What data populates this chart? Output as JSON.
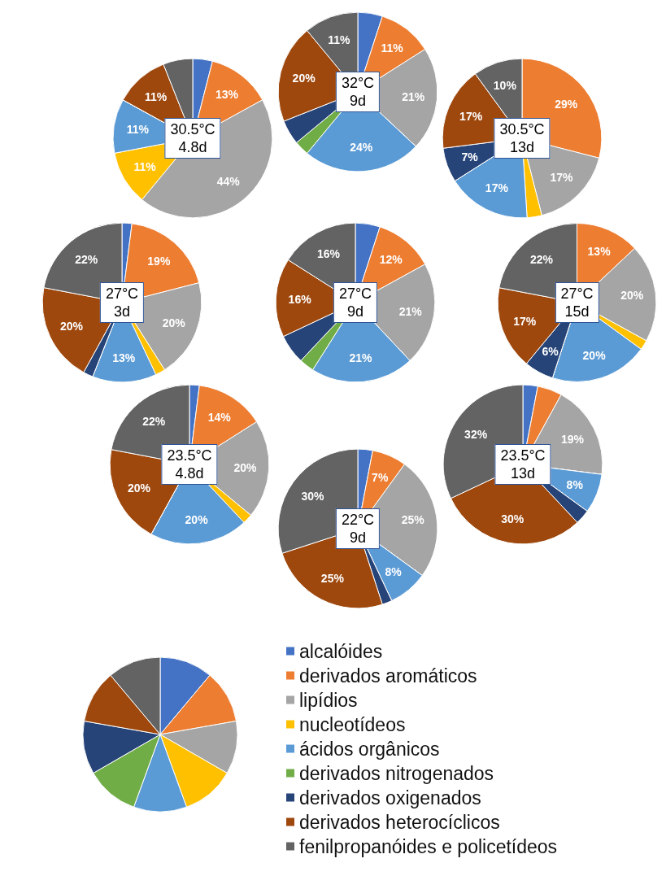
{
  "chart_data": [
    {
      "type": "pie",
      "title": "30.5°C",
      "subtitle": "4.8d",
      "categories": [
        null,
        null,
        null,
        null,
        null,
        null,
        null,
        null,
        null
      ],
      "values": [
        4,
        13,
        44,
        11,
        11,
        0,
        0,
        11,
        6
      ],
      "value_labels": [
        null,
        "13%",
        "44%",
        "11%",
        "11%",
        null,
        null,
        "11%",
        null
      ],
      "colors": [
        "#4472c4",
        "#ed7d31",
        "#a5a5a5",
        "#ffc000",
        "#5b9bd5",
        "#70ad47",
        "#264478",
        "#9e480e",
        "#636363"
      ],
      "legend": false
    },
    {
      "type": "pie",
      "title": "32°C",
      "subtitle": "9d",
      "categories": [
        null,
        null,
        null,
        null,
        null,
        null,
        null,
        null,
        null
      ],
      "values": [
        5,
        11,
        21,
        0,
        24,
        3,
        5,
        20,
        11
      ],
      "value_labels": [
        null,
        "11%",
        "21%",
        null,
        "24%",
        null,
        null,
        "20%",
        "11%"
      ],
      "colors": [
        "#4472c4",
        "#ed7d31",
        "#a5a5a5",
        "#ffc000",
        "#5b9bd5",
        "#70ad47",
        "#264478",
        "#9e480e",
        "#636363"
      ],
      "legend": false
    },
    {
      "type": "pie",
      "title": "30.5°C",
      "subtitle": "13d",
      "categories": [
        null,
        null,
        null,
        null,
        null,
        null,
        null,
        null,
        null
      ],
      "values": [
        0,
        29,
        17,
        3,
        17,
        0,
        7,
        17,
        10
      ],
      "value_labels": [
        null,
        "29%",
        "17%",
        null,
        "17%",
        null,
        "7%",
        "17%",
        "10%"
      ],
      "colors": [
        "#4472c4",
        "#ed7d31",
        "#a5a5a5",
        "#ffc000",
        "#5b9bd5",
        "#70ad47",
        "#264478",
        "#9e480e",
        "#636363"
      ],
      "legend": false
    },
    {
      "type": "pie",
      "title": "27°C",
      "subtitle": "3d",
      "categories": [
        null,
        null,
        null,
        null,
        null,
        null,
        null,
        null,
        null
      ],
      "values": [
        2,
        19,
        20,
        2,
        13,
        0,
        2,
        20,
        22
      ],
      "value_labels": [
        null,
        "19%",
        "20%",
        null,
        "13%",
        null,
        null,
        "20%",
        "22%"
      ],
      "colors": [
        "#4472c4",
        "#ed7d31",
        "#a5a5a5",
        "#ffc000",
        "#5b9bd5",
        "#70ad47",
        "#264478",
        "#9e480e",
        "#636363"
      ],
      "legend": false
    },
    {
      "type": "pie",
      "title": "27°C",
      "subtitle": "9d",
      "categories": [
        null,
        null,
        null,
        null,
        null,
        null,
        null,
        null,
        null
      ],
      "values": [
        5,
        12,
        21,
        0,
        21,
        3,
        6,
        16,
        16
      ],
      "value_labels": [
        null,
        "12%",
        "21%",
        null,
        "21%",
        null,
        null,
        "16%",
        "16%"
      ],
      "colors": [
        "#4472c4",
        "#ed7d31",
        "#a5a5a5",
        "#ffc000",
        "#5b9bd5",
        "#70ad47",
        "#264478",
        "#9e480e",
        "#636363"
      ],
      "legend": false
    },
    {
      "type": "pie",
      "title": "27°C",
      "subtitle": "15d",
      "categories": [
        null,
        null,
        null,
        null,
        null,
        null,
        null,
        null,
        null
      ],
      "values": [
        0,
        13,
        20,
        2,
        20,
        0,
        6,
        17,
        22
      ],
      "value_labels": [
        null,
        "13%",
        "20%",
        null,
        "20%",
        null,
        "6%",
        "17%",
        "22%"
      ],
      "colors": [
        "#4472c4",
        "#ed7d31",
        "#a5a5a5",
        "#ffc000",
        "#5b9bd5",
        "#70ad47",
        "#264478",
        "#9e480e",
        "#636363"
      ],
      "legend": false
    },
    {
      "type": "pie",
      "title": "23.5°C",
      "subtitle": "4.8d",
      "categories": [
        null,
        null,
        null,
        null,
        null,
        null,
        null,
        null,
        null
      ],
      "values": [
        2,
        14,
        20,
        2,
        20,
        0,
        0,
        20,
        22
      ],
      "value_labels": [
        null,
        "14%",
        "20%",
        null,
        "20%",
        null,
        null,
        "20%",
        "22%"
      ],
      "colors": [
        "#4472c4",
        "#ed7d31",
        "#a5a5a5",
        "#ffc000",
        "#5b9bd5",
        "#70ad47",
        "#264478",
        "#9e480e",
        "#636363"
      ],
      "legend": false
    },
    {
      "type": "pie",
      "title": "22°C",
      "subtitle": "9d",
      "categories": [
        null,
        null,
        null,
        null,
        null,
        null,
        null,
        null,
        null
      ],
      "values": [
        3,
        7,
        25,
        0,
        8,
        0,
        2,
        25,
        30
      ],
      "value_labels": [
        null,
        "7%",
        "25%",
        null,
        "8%",
        null,
        null,
        "25%",
        "30%"
      ],
      "colors": [
        "#4472c4",
        "#ed7d31",
        "#a5a5a5",
        "#ffc000",
        "#5b9bd5",
        "#70ad47",
        "#264478",
        "#9e480e",
        "#636363"
      ],
      "legend": false
    },
    {
      "type": "pie",
      "title": "23.5°C",
      "subtitle": "13d",
      "categories": [
        null,
        null,
        null,
        null,
        null,
        null,
        null,
        null,
        null
      ],
      "values": [
        3,
        5,
        19,
        0,
        8,
        0,
        3,
        30,
        32
      ],
      "value_labels": [
        null,
        null,
        "19%",
        null,
        "8%",
        null,
        null,
        "30%",
        "32%"
      ],
      "colors": [
        "#4472c4",
        "#ed7d31",
        "#a5a5a5",
        "#ffc000",
        "#5b9bd5",
        "#70ad47",
        "#264478",
        "#9e480e",
        "#636363"
      ],
      "legend": false
    },
    {
      "type": "pie",
      "categories": [
        "alcalóides",
        "derivados aromáticos",
        "lipídios",
        "nucleotídeos",
        "ácidos orgânicos",
        "derivados nitrogenados",
        "derivados oxigenados",
        "derivados heterocíclicos",
        "fenilpropanóides e policetídeos"
      ],
      "values": [
        11.1,
        11.1,
        11.1,
        11.1,
        11.1,
        11.1,
        11.1,
        11.1,
        11.1
      ],
      "colors": [
        "#4472c4",
        "#ed7d31",
        "#a5a5a5",
        "#ffc000",
        "#5b9bd5",
        "#70ad47",
        "#264478",
        "#9e480e",
        "#636363"
      ],
      "legend": "right"
    }
  ]
}
